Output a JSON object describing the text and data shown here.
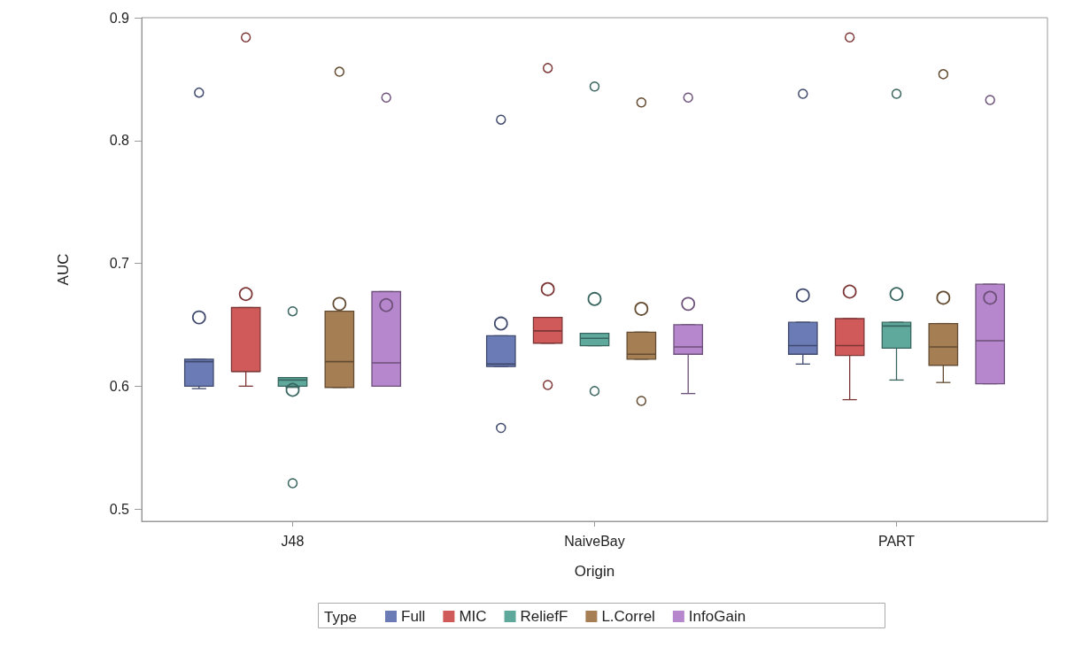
{
  "chart_data": {
    "type": "box",
    "xlabel": "Origin",
    "ylabel": "AUC",
    "legend_title": "Type",
    "legend": "bottom",
    "grid": false,
    "categories": [
      "J48",
      "NaiveBay",
      "PART"
    ],
    "ylim": [
      0.49,
      0.9
    ],
    "yticks": [
      0.5,
      0.6,
      0.7,
      0.8,
      0.9
    ],
    "series": [
      {
        "name": "Full",
        "color": "#6a7bb6",
        "boxes": [
          {
            "low": 0.598,
            "q1": 0.6,
            "median": 0.62,
            "q3": 0.622,
            "high": 0.622,
            "mean": 0.656,
            "outliers": [
              0.839
            ]
          },
          {
            "low": 0.616,
            "q1": 0.616,
            "median": 0.618,
            "q3": 0.641,
            "high": 0.641,
            "mean": 0.651,
            "outliers": [
              0.817,
              0.566
            ]
          },
          {
            "low": 0.618,
            "q1": 0.626,
            "median": 0.633,
            "q3": 0.652,
            "high": 0.652,
            "mean": 0.674,
            "outliers": [
              0.838
            ]
          }
        ]
      },
      {
        "name": "MIC",
        "color": "#d05a5a",
        "boxes": [
          {
            "low": 0.6,
            "q1": 0.612,
            "median": 0.612,
            "q3": 0.664,
            "high": 0.664,
            "mean": 0.675,
            "outliers": [
              0.884
            ]
          },
          {
            "low": 0.635,
            "q1": 0.635,
            "median": 0.645,
            "q3": 0.656,
            "high": 0.656,
            "mean": 0.679,
            "outliers": [
              0.859,
              0.601
            ]
          },
          {
            "low": 0.589,
            "q1": 0.625,
            "median": 0.633,
            "q3": 0.655,
            "high": 0.655,
            "mean": 0.677,
            "outliers": [
              0.884
            ]
          }
        ]
      },
      {
        "name": "ReliefF",
        "color": "#5ea89c",
        "boxes": [
          {
            "low": 0.599,
            "q1": 0.6,
            "median": 0.605,
            "q3": 0.607,
            "high": 0.607,
            "mean": 0.597,
            "outliers": [
              0.661,
              0.521
            ]
          },
          {
            "low": 0.633,
            "q1": 0.633,
            "median": 0.639,
            "q3": 0.643,
            "high": 0.643,
            "mean": 0.671,
            "outliers": [
              0.844,
              0.596
            ]
          },
          {
            "low": 0.605,
            "q1": 0.631,
            "median": 0.649,
            "q3": 0.652,
            "high": 0.652,
            "mean": 0.675,
            "outliers": [
              0.838
            ]
          }
        ]
      },
      {
        "name": "L.Correl",
        "color": "#a57e54",
        "boxes": [
          {
            "low": 0.599,
            "q1": 0.599,
            "median": 0.62,
            "q3": 0.661,
            "high": 0.661,
            "mean": 0.667,
            "outliers": [
              0.856
            ]
          },
          {
            "low": 0.622,
            "q1": 0.622,
            "median": 0.626,
            "q3": 0.644,
            "high": 0.644,
            "mean": 0.663,
            "outliers": [
              0.831,
              0.588
            ]
          },
          {
            "low": 0.603,
            "q1": 0.617,
            "median": 0.632,
            "q3": 0.651,
            "high": 0.651,
            "mean": 0.672,
            "outliers": [
              0.854
            ]
          }
        ]
      },
      {
        "name": "InfoGain",
        "color": "#b687cc",
        "boxes": [
          {
            "low": 0.6,
            "q1": 0.6,
            "median": 0.619,
            "q3": 0.677,
            "high": 0.677,
            "mean": 0.666,
            "outliers": [
              0.835
            ]
          },
          {
            "low": 0.594,
            "q1": 0.626,
            "median": 0.632,
            "q3": 0.65,
            "high": 0.65,
            "mean": 0.667,
            "outliers": [
              0.835
            ]
          },
          {
            "low": 0.602,
            "q1": 0.602,
            "median": 0.637,
            "q3": 0.683,
            "high": 0.683,
            "mean": 0.672,
            "outliers": [
              0.833
            ]
          }
        ]
      }
    ]
  }
}
